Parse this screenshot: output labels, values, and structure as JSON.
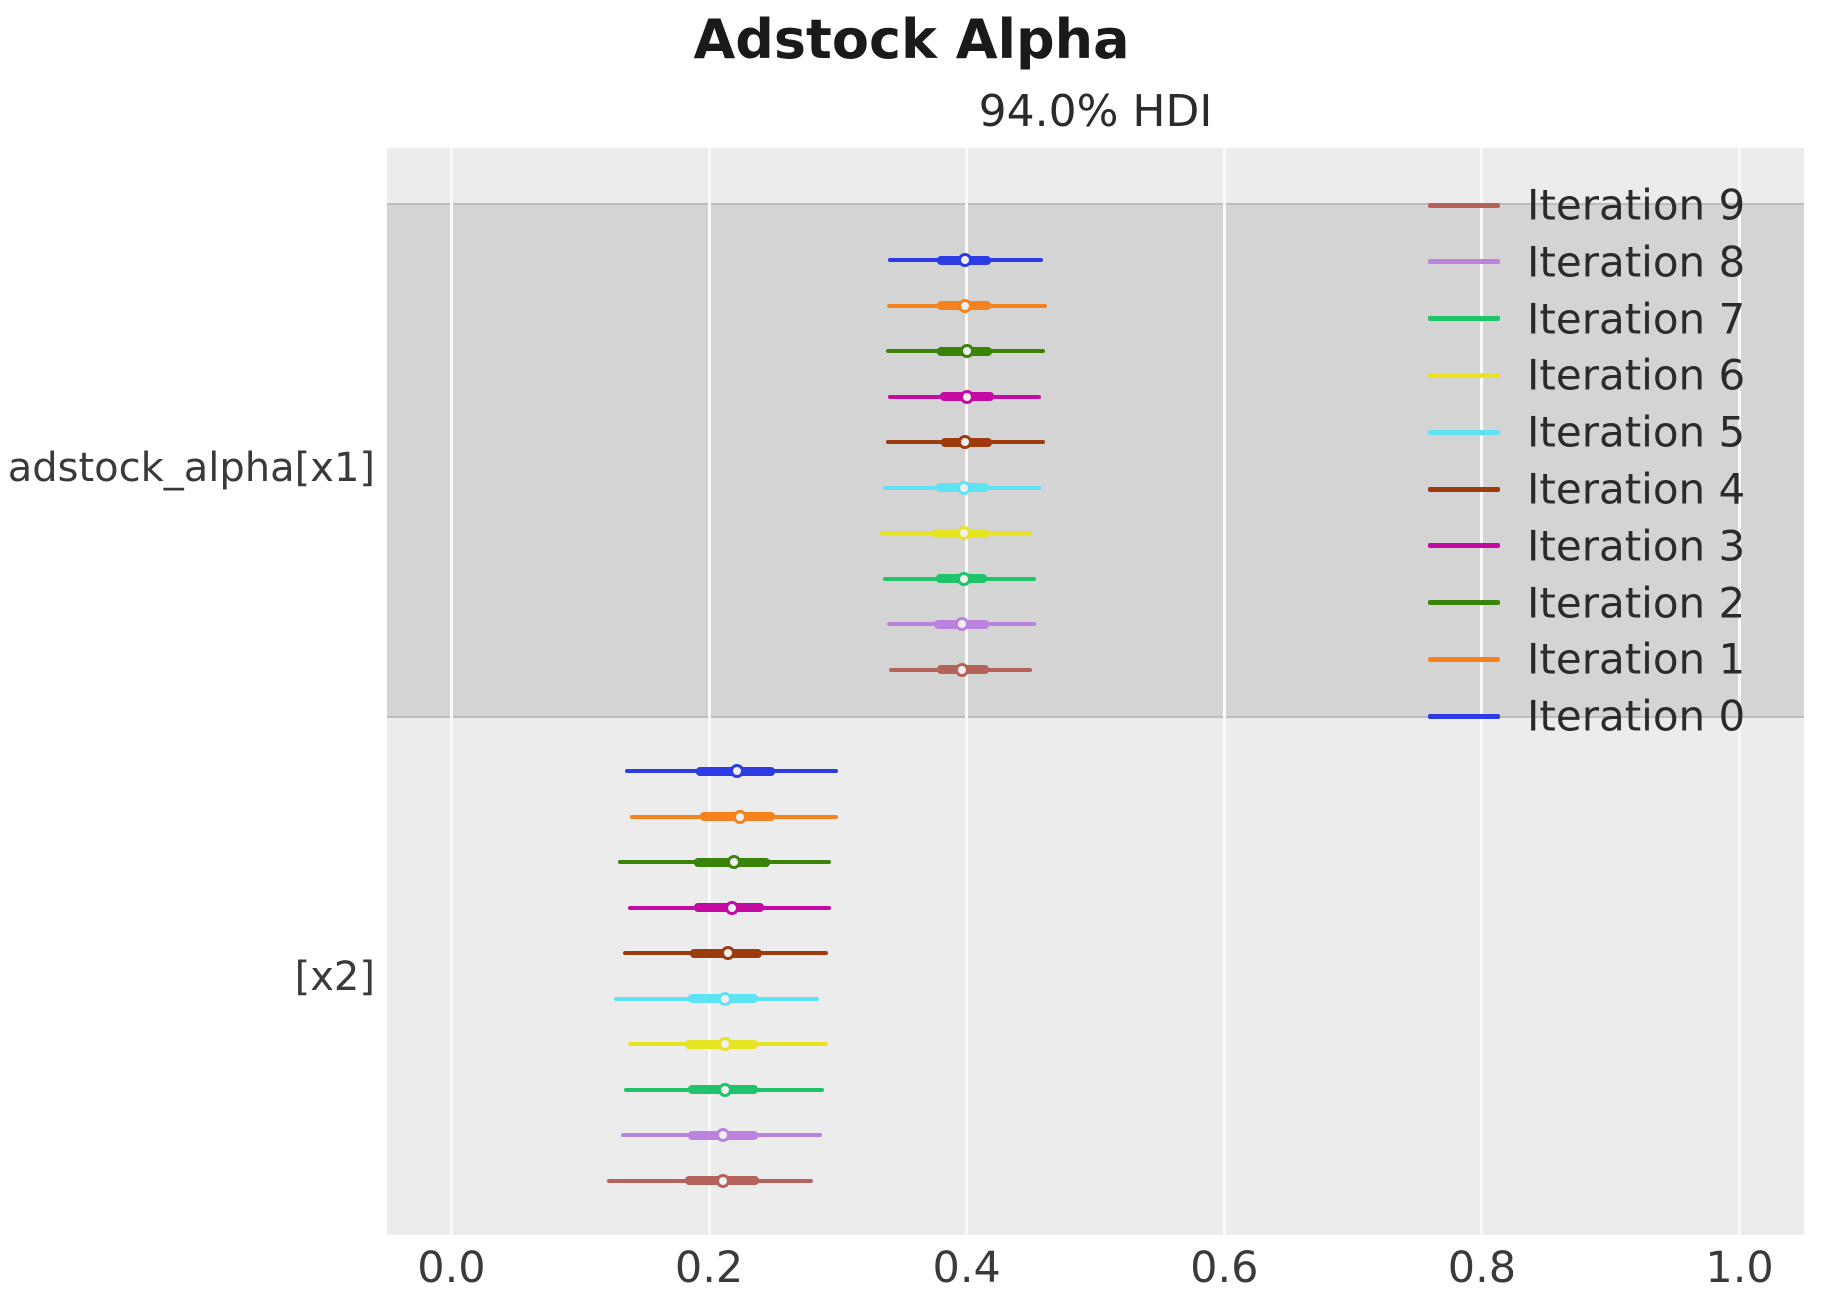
{
  "title": "Adstock Alpha",
  "subtitle": "94.0% HDI",
  "chart_data": {
    "type": "forest",
    "title": "Adstock Alpha",
    "subtitle": "94.0% HDI",
    "hdi_probability": "94.0%",
    "xlabel": "",
    "ylabel": "",
    "xlim": [
      -0.05,
      1.05
    ],
    "x_ticks": [
      {
        "value": 0.0,
        "label": "0.0"
      },
      {
        "value": 0.2,
        "label": "0.2"
      },
      {
        "value": 0.4,
        "label": "0.4"
      },
      {
        "value": 0.6,
        "label": "0.6"
      },
      {
        "value": 0.8,
        "label": "0.8"
      },
      {
        "value": 1.0,
        "label": "1.0"
      }
    ],
    "grid": true,
    "legend_position": "upper right",
    "legend": [
      {
        "label": "Iteration 9",
        "color": "#b3635a"
      },
      {
        "label": "Iteration 8",
        "color": "#bb82de"
      },
      {
        "label": "Iteration 7",
        "color": "#1fc46a"
      },
      {
        "label": "Iteration 6",
        "color": "#e6e322"
      },
      {
        "label": "Iteration 5",
        "color": "#5ee3f5"
      },
      {
        "label": "Iteration 4",
        "color": "#9c3c0e"
      },
      {
        "label": "Iteration 3",
        "color": "#c40aa2"
      },
      {
        "label": "Iteration 2",
        "color": "#398408"
      },
      {
        "label": "Iteration 1",
        "color": "#f6821e"
      },
      {
        "label": "Iteration 0",
        "color": "#2c3be3"
      }
    ],
    "variables": [
      {
        "label": "adstock_alpha[x1]",
        "shaded": true,
        "rows": [
          {
            "name": "Iteration 0",
            "color": "#2c3be3",
            "hdi": [
              0.339,
              0.459
            ],
            "quartile": [
              0.377,
              0.419
            ],
            "median": 0.399
          },
          {
            "name": "Iteration 1",
            "color": "#f6821e",
            "hdi": [
              0.338,
              0.462
            ],
            "quartile": [
              0.377,
              0.419
            ],
            "median": 0.399
          },
          {
            "name": "Iteration 2",
            "color": "#398408",
            "hdi": [
              0.337,
              0.461
            ],
            "quartile": [
              0.377,
              0.42
            ],
            "median": 0.4
          },
          {
            "name": "Iteration 3",
            "color": "#c40aa2",
            "hdi": [
              0.339,
              0.458
            ],
            "quartile": [
              0.379,
              0.421
            ],
            "median": 0.4
          },
          {
            "name": "Iteration 4",
            "color": "#9c3c0e",
            "hdi": [
              0.337,
              0.461
            ],
            "quartile": [
              0.38,
              0.42
            ],
            "median": 0.399
          },
          {
            "name": "Iteration 5",
            "color": "#5ee3f5",
            "hdi": [
              0.335,
              0.458
            ],
            "quartile": [
              0.376,
              0.417
            ],
            "median": 0.398
          },
          {
            "name": "Iteration 6",
            "color": "#e6e322",
            "hdi": [
              0.333,
              0.451
            ],
            "quartile": [
              0.374,
              0.417
            ],
            "median": 0.398
          },
          {
            "name": "Iteration 7",
            "color": "#1fc46a",
            "hdi": [
              0.335,
              0.454
            ],
            "quartile": [
              0.376,
              0.416
            ],
            "median": 0.398
          },
          {
            "name": "Iteration 8",
            "color": "#bb82de",
            "hdi": [
              0.338,
              0.454
            ],
            "quartile": [
              0.375,
              0.417
            ],
            "median": 0.396
          },
          {
            "name": "Iteration 9",
            "color": "#b3635a",
            "hdi": [
              0.34,
              0.451
            ],
            "quartile": [
              0.377,
              0.417
            ],
            "median": 0.396
          }
        ]
      },
      {
        "label": "[x2]",
        "shaded": false,
        "rows": [
          {
            "name": "Iteration 0",
            "color": "#2c3be3",
            "hdi": [
              0.135,
              0.3
            ],
            "quartile": [
              0.19,
              0.251
            ],
            "median": 0.222
          },
          {
            "name": "Iteration 1",
            "color": "#f6821e",
            "hdi": [
              0.139,
              0.3
            ],
            "quartile": [
              0.193,
              0.251
            ],
            "median": 0.224
          },
          {
            "name": "Iteration 2",
            "color": "#398408",
            "hdi": [
              0.129,
              0.295
            ],
            "quartile": [
              0.188,
              0.247
            ],
            "median": 0.219
          },
          {
            "name": "Iteration 3",
            "color": "#c40aa2",
            "hdi": [
              0.137,
              0.295
            ],
            "quartile": [
              0.188,
              0.243
            ],
            "median": 0.218
          },
          {
            "name": "Iteration 4",
            "color": "#9c3c0e",
            "hdi": [
              0.133,
              0.292
            ],
            "quartile": [
              0.185,
              0.241
            ],
            "median": 0.215
          },
          {
            "name": "Iteration 5",
            "color": "#5ee3f5",
            "hdi": [
              0.126,
              0.285
            ],
            "quartile": [
              0.184,
              0.238
            ],
            "median": 0.212
          },
          {
            "name": "Iteration 6",
            "color": "#e6e322",
            "hdi": [
              0.137,
              0.292
            ],
            "quartile": [
              0.181,
              0.238
            ],
            "median": 0.212
          },
          {
            "name": "Iteration 7",
            "color": "#1fc46a",
            "hdi": [
              0.134,
              0.289
            ],
            "quartile": [
              0.184,
              0.238
            ],
            "median": 0.212
          },
          {
            "name": "Iteration 8",
            "color": "#bb82de",
            "hdi": [
              0.132,
              0.288
            ],
            "quartile": [
              0.184,
              0.238
            ],
            "median": 0.211
          },
          {
            "name": "Iteration 9",
            "color": "#b3635a",
            "hdi": [
              0.121,
              0.281
            ],
            "quartile": [
              0.181,
              0.239
            ],
            "median": 0.211
          }
        ]
      }
    ]
  }
}
